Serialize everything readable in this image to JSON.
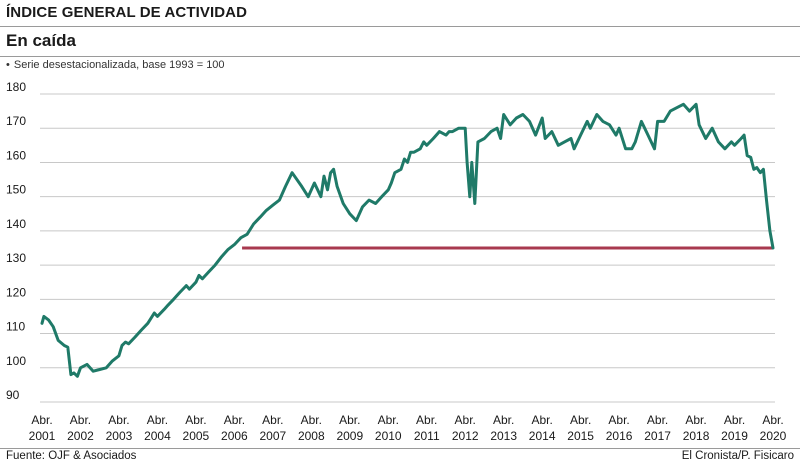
{
  "header": {
    "kicker": "ÍNDICE GENERAL DE ACTIVIDAD",
    "headline": "En caída",
    "note": "Serie desestacionalizada, base 1993 = 100",
    "note_bullet": "•"
  },
  "footer": {
    "source": "Fuente: OJF & Asociados",
    "credit": "El Cronista/P. Fisicaro"
  },
  "colors": {
    "series": "#1f7a68",
    "reference_line": "#a8394f",
    "grid": "#c8c8c8",
    "text": "#1a1a1a"
  },
  "chart_data": {
    "type": "line",
    "title": "",
    "xlabel": "",
    "ylabel": "",
    "xlim": [
      2001.0,
      2020.0
    ],
    "ylim": [
      90,
      180
    ],
    "yticks": [
      90,
      100,
      110,
      120,
      130,
      140,
      150,
      160,
      170,
      180
    ],
    "y_tick_labels": [
      "90",
      "100",
      "110",
      "120",
      "130",
      "140",
      "150",
      "160",
      "170",
      "180"
    ],
    "x_ticks": [
      {
        "x": 2001,
        "line1": "Abr.",
        "line2": "2001"
      },
      {
        "x": 2002,
        "line1": "Abr.",
        "line2": "2002"
      },
      {
        "x": 2003,
        "line1": "Abr.",
        "line2": "2003"
      },
      {
        "x": 2004,
        "line1": "Abr.",
        "line2": "2004"
      },
      {
        "x": 2005,
        "line1": "Abr.",
        "line2": "2005"
      },
      {
        "x": 2006,
        "line1": "Abr.",
        "line2": "2006"
      },
      {
        "x": 2007,
        "line1": "Abr.",
        "line2": "2007"
      },
      {
        "x": 2008,
        "line1": "Abr.",
        "line2": "2008"
      },
      {
        "x": 2009,
        "line1": "Abr.",
        "line2": "2009"
      },
      {
        "x": 2010,
        "line1": "Abr.",
        "line2": "2010"
      },
      {
        "x": 2011,
        "line1": "Abr.",
        "line2": "2011"
      },
      {
        "x": 2012,
        "line1": "Abr.",
        "line2": "2012"
      },
      {
        "x": 2013,
        "line1": "Abr.",
        "line2": "2013"
      },
      {
        "x": 2014,
        "line1": "Abr.",
        "line2": "2014"
      },
      {
        "x": 2015,
        "line1": "Abr.",
        "line2": "2015"
      },
      {
        "x": 2016,
        "line1": "Abr.",
        "line2": "2016"
      },
      {
        "x": 2017,
        "line1": "Abr.",
        "line2": "2017"
      },
      {
        "x": 2018,
        "line1": "Abr.",
        "line2": "2018"
      },
      {
        "x": 2019,
        "line1": "Abr.",
        "line2": "2019"
      },
      {
        "x": 2020,
        "line1": "Abr.",
        "line2": "2020"
      }
    ],
    "grid": {
      "horizontal": true,
      "vertical": false
    },
    "series": [
      {
        "x": [
          2001.0,
          2001.05,
          2001.17,
          2001.29,
          2001.42,
          2001.58,
          2001.67,
          2001.75,
          2001.83,
          2001.92,
          2002.0,
          2002.17,
          2002.33,
          2002.5,
          2002.67,
          2002.83,
          2003.0,
          2003.08,
          2003.17,
          2003.25,
          2003.42,
          2003.58,
          2003.75,
          2003.92,
          2004.0,
          2004.17,
          2004.25,
          2004.42,
          2004.58,
          2004.75,
          2004.83,
          2005.0,
          2005.08,
          2005.17,
          2005.33,
          2005.5,
          2005.67,
          2005.83,
          2006.0,
          2006.17,
          2006.33,
          2006.5,
          2006.67,
          2006.83,
          2007.0,
          2007.17,
          2007.33,
          2007.5,
          2007.75,
          2007.92,
          2008.08,
          2008.25,
          2008.33,
          2008.42,
          2008.5,
          2008.58,
          2008.67,
          2008.83,
          2009.0,
          2009.17,
          2009.33,
          2009.5,
          2009.67,
          2009.83,
          2010.0,
          2010.08,
          2010.17,
          2010.33,
          2010.42,
          2010.5,
          2010.58,
          2010.67,
          2010.83,
          2010.92,
          2011.0,
          2011.17,
          2011.33,
          2011.5,
          2011.58,
          2011.67,
          2011.83,
          2012.0,
          2012.05,
          2012.12,
          2012.17,
          2012.25,
          2012.33,
          2012.5,
          2012.67,
          2012.83,
          2012.92,
          2013.0,
          2013.17,
          2013.33,
          2013.5,
          2013.67,
          2013.83,
          2014.0,
          2014.08,
          2014.25,
          2014.42,
          2014.58,
          2014.75,
          2014.83,
          2015.0,
          2015.17,
          2015.25,
          2015.42,
          2015.58,
          2015.75,
          2015.92,
          2016.0,
          2016.17,
          2016.33,
          2016.42,
          2016.58,
          2016.75,
          2016.92,
          2017.0,
          2017.17,
          2017.33,
          2017.5,
          2017.67,
          2017.83,
          2018.0,
          2018.08,
          2018.25,
          2018.42,
          2018.58,
          2018.75,
          2018.92,
          2019.0,
          2019.17,
          2019.25,
          2019.33,
          2019.42,
          2019.5,
          2019.58,
          2019.67,
          2019.75,
          2019.83,
          2019.92,
          2020.0
        ],
        "values": [
          113,
          115,
          114,
          112,
          108,
          106.5,
          106,
          98,
          98.5,
          97.5,
          100,
          101,
          99,
          99.5,
          100,
          102,
          103.5,
          106.5,
          107.5,
          107,
          109,
          111,
          113,
          116,
          115,
          117,
          118,
          120,
          122,
          124,
          123,
          125,
          127,
          126,
          128,
          130,
          132.5,
          134.5,
          136,
          138,
          139,
          142,
          144,
          146,
          147.5,
          149,
          153,
          157,
          153,
          150,
          154,
          150,
          156,
          152,
          157,
          158,
          153,
          148,
          145,
          143,
          147,
          149,
          148,
          150,
          152,
          154,
          157,
          158,
          161,
          160,
          163,
          163,
          164,
          166,
          165,
          167,
          169,
          168,
          169,
          169,
          170,
          170,
          160,
          150,
          160,
          148,
          166,
          167,
          169,
          170,
          167,
          174,
          171,
          173,
          174,
          172,
          168,
          173,
          167,
          169,
          165,
          166,
          167,
          164,
          168,
          172,
          170,
          174,
          172,
          171,
          168,
          170,
          164,
          164,
          166,
          172,
          168,
          164,
          172,
          172,
          175,
          176,
          177,
          175,
          177,
          171,
          167,
          170,
          166,
          164,
          166,
          165,
          167,
          168,
          162,
          161.5,
          158,
          158.5,
          157,
          158,
          149,
          140,
          135
        ],
        "color": "#1f7a68"
      }
    ],
    "reference_line": {
      "y": 135,
      "x_start": 2006.2,
      "x_end": 2020.0,
      "color": "#a8394f"
    },
    "legend": "none"
  }
}
